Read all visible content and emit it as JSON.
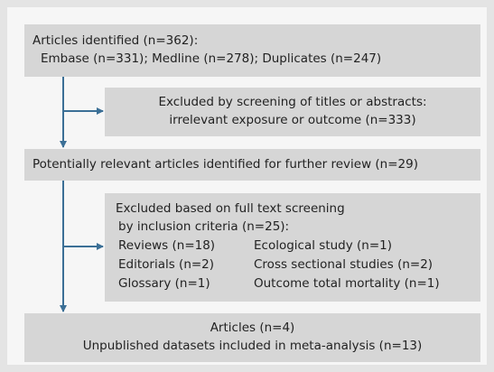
{
  "nodes": [
    {
      "lines": [
        "Articles identified (n=362):",
        "Embase (n=331); Medline (n=278); Duplicates (n=247)"
      ]
    },
    {
      "lines": [
        "Excluded by screening of titles or abstracts:",
        "irrelevant exposure or outcome (n=333)"
      ]
    },
    {
      "lines": [
        "Potentially relevant articles identified for further review (n=29)"
      ]
    },
    {
      "lines": [
        "Excluded based on full text screening",
        "by inclusion criteria (n=25):"
      ],
      "items": [
        [
          "Reviews (n=18)",
          "Ecological study (n=1)"
        ],
        [
          "Editorials (n=2)",
          "Cross sectional studies (n=2)"
        ],
        [
          "Glossary (n=1)",
          "Outcome total mortality (n=1)"
        ]
      ]
    },
    {
      "lines": [
        "Articles (n=4)",
        "Unpublished datasets included in meta-analysis (n=13)"
      ]
    }
  ]
}
